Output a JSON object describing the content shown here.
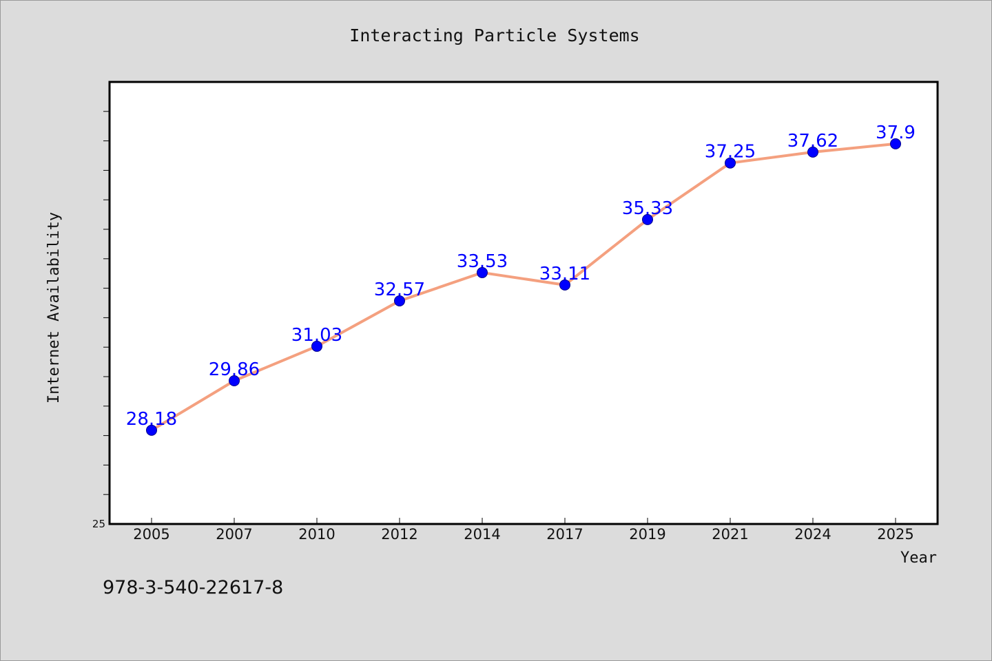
{
  "chart_data": {
    "type": "line",
    "title": "Interacting Particle Systems",
    "xlabel": "Year",
    "ylabel": "Internet Availability",
    "categories": [
      "2005",
      "2007",
      "2010",
      "2012",
      "2014",
      "2017",
      "2019",
      "2021",
      "2024",
      "2025"
    ],
    "series": [
      {
        "values": [
          28.18,
          29.86,
          31.03,
          32.57,
          33.53,
          33.11,
          35.33,
          37.25,
          37.62,
          37.9
        ]
      }
    ],
    "data_labels": [
      "28.18",
      "29.86",
      "31.03",
      "32.57",
      "33.53",
      "33.11",
      "35.33",
      "37.25",
      "37.62",
      "37.9"
    ],
    "ylim": [
      25,
      40
    ],
    "y_tick_label": "25",
    "grid": false,
    "legend": "none",
    "colors": {
      "line": "#f4a07f",
      "marker": "#0000ff",
      "label": "#0000ff",
      "background": "#dcdcdc",
      "plot_background": "#ffffff"
    }
  },
  "footer": {
    "isbn": "978-3-540-22617-8"
  }
}
